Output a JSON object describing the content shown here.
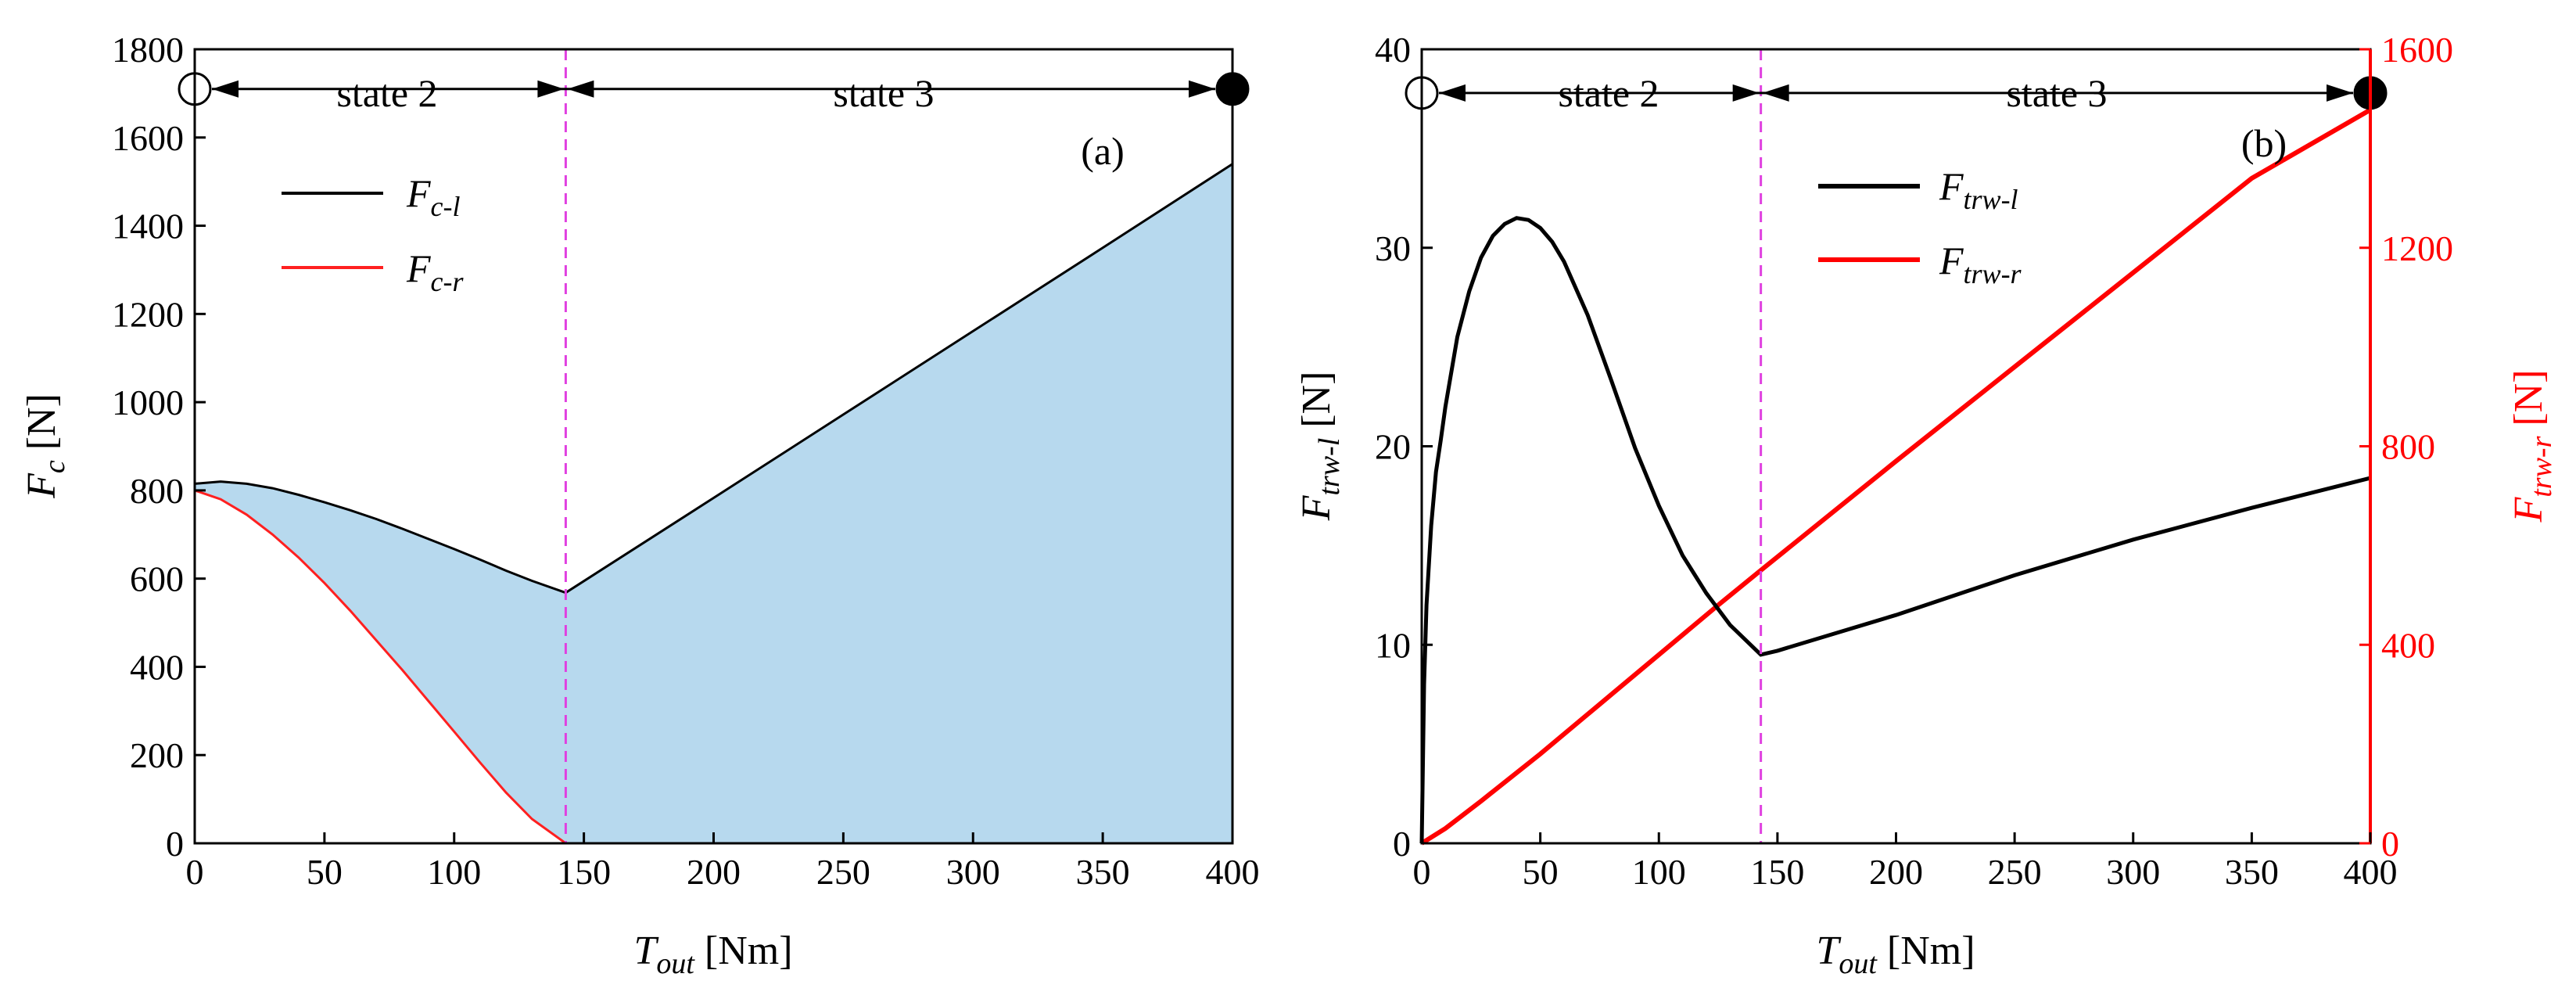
{
  "chart_data": [
    {
      "type": "area",
      "panel_label": "(a)",
      "xlabel": {
        "main": "T",
        "sub": "out",
        "unit": " [Nm]"
      },
      "ylabel": {
        "main": "F",
        "sub": "c",
        "unit": " [N]"
      },
      "xlim": [
        0,
        400
      ],
      "ylim": [
        0,
        1800
      ],
      "xticks": [
        0,
        50,
        100,
        150,
        200,
        250,
        300,
        350,
        400
      ],
      "yticks": [
        0,
        200,
        400,
        600,
        800,
        1000,
        1200,
        1400,
        1600,
        1800
      ],
      "states": {
        "boundary": 143,
        "left_label": "state 2",
        "right_label": "state 3",
        "arrow_y": 1710
      },
      "fill_color": "#b7d9ee",
      "series": [
        {
          "name": "F",
          "sub": "c-l",
          "color": "#000000",
          "x": [
            0,
            10,
            20,
            30,
            40,
            50,
            60,
            70,
            80,
            90,
            100,
            110,
            120,
            130,
            143,
            200,
            250,
            300,
            350,
            400
          ],
          "y": [
            815,
            820,
            815,
            805,
            790,
            773,
            755,
            735,
            713,
            690,
            667,
            643,
            618,
            595,
            568,
            783,
            972,
            1161,
            1350,
            1540
          ]
        },
        {
          "name": "F",
          "sub": "c-r",
          "color": "#ff2020",
          "x": [
            0,
            10,
            20,
            30,
            40,
            50,
            60,
            70,
            80,
            90,
            100,
            110,
            120,
            130,
            143,
            400
          ],
          "y": [
            800,
            780,
            745,
            700,
            648,
            590,
            527,
            460,
            393,
            323,
            253,
            183,
            115,
            55,
            0,
            0
          ]
        }
      ]
    },
    {
      "type": "line",
      "panel_label": "(b)",
      "xlabel": {
        "main": "T",
        "sub": "out",
        "unit": " [Nm]"
      },
      "ylabel_left": {
        "main": "F",
        "sub": "trw-l",
        "unit": " [N]"
      },
      "ylabel_right": {
        "main": "F",
        "sub": "trw-r",
        "unit": " [N]",
        "color": "#ff0000"
      },
      "xlim": [
        0,
        400
      ],
      "ylim_left": [
        0,
        40
      ],
      "ylim_right": [
        0,
        1600
      ],
      "xticks": [
        0,
        50,
        100,
        150,
        200,
        250,
        300,
        350,
        400
      ],
      "yticks_left": [
        0,
        10,
        20,
        30,
        40
      ],
      "yticks_right": [
        0,
        400,
        800,
        1200,
        1600
      ],
      "states": {
        "boundary": 143,
        "left_label": "state 2",
        "right_label": "state 3",
        "arrow_y": 37.8
      },
      "series": [
        {
          "name": "F",
          "sub": "trw-l",
          "axis": "left",
          "color": "#000000",
          "x": [
            0,
            1,
            2,
            4,
            6,
            8,
            10,
            15,
            20,
            25,
            30,
            35,
            40,
            45,
            50,
            55,
            60,
            70,
            80,
            90,
            100,
            110,
            120,
            130,
            143,
            150,
            200,
            250,
            300,
            350,
            400
          ],
          "y": [
            0,
            8,
            12,
            16,
            18.7,
            20.3,
            22,
            25.5,
            27.8,
            29.5,
            30.6,
            31.2,
            31.5,
            31.4,
            31.0,
            30.3,
            29.3,
            26.6,
            23.3,
            19.9,
            17.0,
            14.5,
            12.6,
            11.0,
            9.5,
            9.7,
            11.5,
            13.5,
            15.3,
            16.9,
            18.4
          ]
        },
        {
          "name": "F",
          "sub": "trw-r",
          "axis": "right",
          "color": "#ff0000",
          "x": [
            0,
            10,
            25,
            50,
            75,
            100,
            125,
            143,
            200,
            250,
            300,
            350,
            400
          ],
          "y": [
            0,
            30,
            85,
            180,
            280,
            380,
            480,
            550,
            770,
            960,
            1150,
            1340,
            1478
          ]
        }
      ]
    }
  ]
}
